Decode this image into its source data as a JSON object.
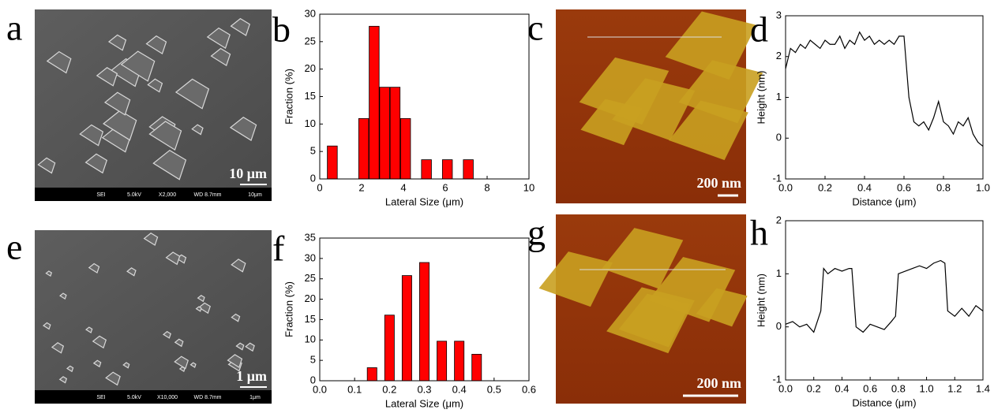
{
  "images": [
    {
      "label": "a",
      "scale": "10 μm",
      "footer": [
        "SEI",
        "5.0kV",
        "X2,000",
        "WD 8.7mm",
        "10μm"
      ]
    },
    {
      "label": "c",
      "scale": "200 nm"
    },
    {
      "label": "e",
      "scale": "1 μm",
      "footer": [
        "SEI",
        "5.0kV",
        "X10,000",
        "WD 8.7mm",
        "1μm"
      ]
    },
    {
      "label": "g",
      "scale": "200 nm"
    }
  ],
  "chart_data": [
    {
      "panel_label": "b",
      "type": "bar",
      "x_label": "Lateral Size (μm)",
      "y_label": "Fraction (%)",
      "color": "#ff0000",
      "x": [
        0.6,
        2.1,
        2.6,
        3.1,
        3.6,
        4.1,
        5.1,
        6.1,
        7.1
      ],
      "values": [
        6,
        11,
        27.8,
        16.7,
        16.7,
        11,
        3.5,
        3.5,
        3.5
      ],
      "xlim": [
        0,
        10
      ],
      "xticks": [
        0,
        2,
        4,
        6,
        8,
        10
      ],
      "ylim": [
        0,
        30
      ],
      "yticks": [
        0,
        5,
        10,
        15,
        20,
        25,
        30
      ]
    },
    {
      "panel_label": "d",
      "type": "line",
      "x_label": "Distance (μm)",
      "y_label": "Height (nm)",
      "color": "#000000",
      "x": [
        0,
        0.025,
        0.05,
        0.075,
        0.1,
        0.125,
        0.15,
        0.175,
        0.2,
        0.225,
        0.25,
        0.275,
        0.3,
        0.325,
        0.35,
        0.375,
        0.4,
        0.425,
        0.45,
        0.475,
        0.5,
        0.525,
        0.55,
        0.575,
        0.6,
        0.625,
        0.65,
        0.675,
        0.7,
        0.725,
        0.75,
        0.775,
        0.8,
        0.825,
        0.85,
        0.875,
        0.9,
        0.925,
        0.95,
        0.975,
        1.0
      ],
      "values": [
        1.7,
        2.2,
        2.1,
        2.3,
        2.2,
        2.4,
        2.3,
        2.2,
        2.4,
        2.3,
        2.3,
        2.5,
        2.2,
        2.4,
        2.3,
        2.6,
        2.4,
        2.5,
        2.3,
        2.4,
        2.3,
        2.4,
        2.3,
        2.5,
        2.5,
        1.0,
        0.4,
        0.3,
        0.4,
        0.2,
        0.5,
        0.9,
        0.4,
        0.3,
        0.1,
        0.4,
        0.3,
        0.5,
        0.1,
        -0.1,
        -0.2
      ],
      "xlim": [
        0,
        1
      ],
      "xticks": [
        {
          "value": 0,
          "label": "0.0"
        },
        {
          "value": 0.2,
          "label": "0.2"
        },
        {
          "value": 0.4,
          "label": "0.4"
        },
        {
          "value": 0.6,
          "label": "0.6"
        },
        {
          "value": 0.8,
          "label": "0.8"
        },
        {
          "value": 1,
          "label": "1.0"
        }
      ],
      "ylim": [
        -1,
        3
      ],
      "yticks": [
        -1,
        0,
        1,
        2,
        3
      ]
    },
    {
      "panel_label": "f",
      "type": "bar",
      "x_label": "Lateral Size (μm)",
      "y_label": "Fraction (%)",
      "color": "#ff0000",
      "x": [
        0.15,
        0.2,
        0.25,
        0.3,
        0.35,
        0.4,
        0.45
      ],
      "values": [
        3.2,
        16.1,
        25.8,
        29,
        9.7,
        9.7,
        6.5
      ],
      "xlim": [
        0,
        0.6
      ],
      "xticks": [
        {
          "value": 0,
          "label": "0.0"
        },
        0.1,
        0.2,
        0.3,
        0.4,
        0.5,
        0.6
      ],
      "ylim": [
        0,
        35
      ],
      "yticks": [
        0,
        5,
        10,
        15,
        20,
        25,
        30,
        35
      ]
    },
    {
      "panel_label": "h",
      "type": "line",
      "x_label": "Distance (μm)",
      "y_label": "Height (nm)",
      "color": "#000000",
      "x": [
        0,
        0.05,
        0.1,
        0.15,
        0.2,
        0.25,
        0.27,
        0.3,
        0.35,
        0.4,
        0.45,
        0.47,
        0.5,
        0.55,
        0.6,
        0.65,
        0.7,
        0.75,
        0.78,
        0.8,
        0.85,
        0.9,
        0.95,
        1.0,
        1.05,
        1.1,
        1.13,
        1.15,
        1.2,
        1.25,
        1.3,
        1.35,
        1.4
      ],
      "values": [
        0.05,
        0.1,
        0.0,
        0.05,
        -0.1,
        0.3,
        1.1,
        1.0,
        1.1,
        1.05,
        1.1,
        1.1,
        0.0,
        -0.1,
        0.05,
        0.0,
        -0.05,
        0.1,
        0.2,
        1.0,
        1.05,
        1.1,
        1.15,
        1.1,
        1.2,
        1.25,
        1.2,
        0.3,
        0.2,
        0.35,
        0.2,
        0.4,
        0.3
      ],
      "xlim": [
        0,
        1.4
      ],
      "xticks": [
        {
          "value": 0,
          "label": "0.0"
        },
        0.2,
        0.4,
        0.6,
        0.8,
        {
          "value": 1,
          "label": "1.0"
        },
        1.2,
        1.4
      ],
      "ylim": [
        -1,
        2
      ],
      "yticks": [
        -1,
        0,
        1,
        2
      ]
    }
  ]
}
